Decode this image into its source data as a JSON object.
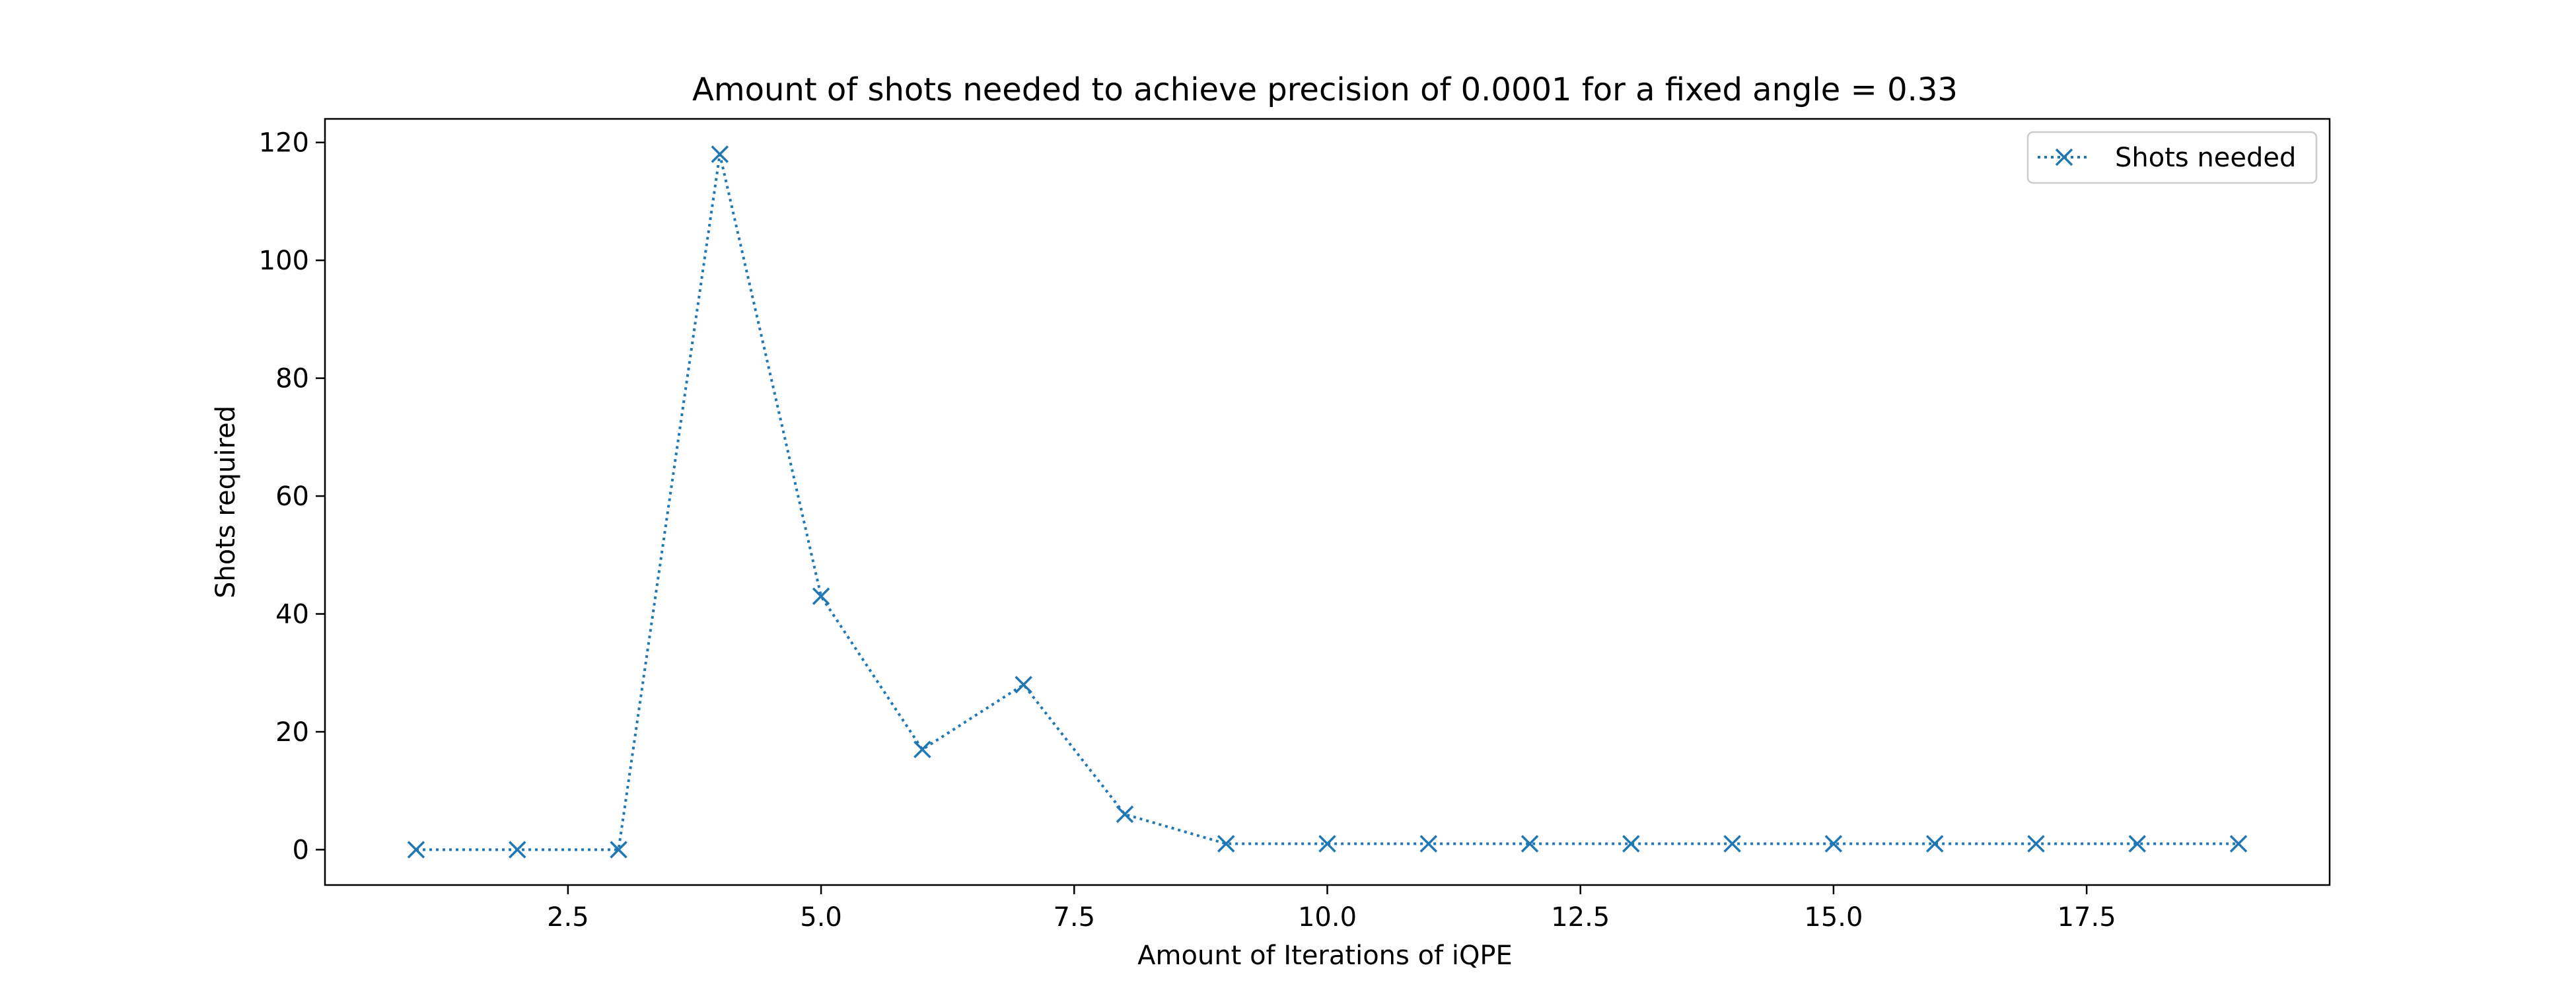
{
  "chart_data": {
    "type": "line",
    "title": "Amount of shots needed to achieve precision of 0.0001 for a fixed angle = 0.33",
    "xlabel": "Amount of Iterations of iQPE",
    "ylabel": "Shots required",
    "xlim": [
      0.1,
      19.9
    ],
    "ylim": [
      -6,
      124
    ],
    "xticks": [
      2.5,
      5.0,
      7.5,
      10.0,
      12.5,
      15.0,
      17.5
    ],
    "xtick_labels": [
      "2.5",
      "5.0",
      "7.5",
      "10.0",
      "12.5",
      "15.0",
      "17.5"
    ],
    "yticks": [
      0,
      20,
      40,
      60,
      80,
      100,
      120
    ],
    "ytick_labels": [
      "0",
      "20",
      "40",
      "60",
      "80",
      "100",
      "120"
    ],
    "grid": false,
    "legend_position": "top-right",
    "series": [
      {
        "name": "Shots needed",
        "color": "#1f77b4",
        "line_style": "dotted",
        "marker": "x",
        "x": [
          1,
          2,
          3,
          4,
          5,
          6,
          7,
          8,
          9,
          10,
          11,
          12,
          13,
          14,
          15,
          16,
          17,
          18,
          19
        ],
        "y": [
          0,
          0,
          0,
          118,
          43,
          17,
          28,
          6,
          1,
          1,
          1,
          1,
          1,
          1,
          1,
          1,
          1,
          1,
          1
        ]
      }
    ]
  }
}
